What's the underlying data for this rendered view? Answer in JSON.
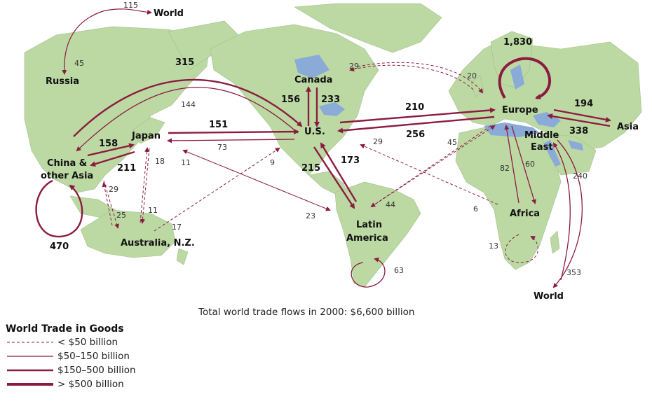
{
  "caption": "Total world trade flows in 2000: $6,600 billion",
  "colors": {
    "land": "#bcd9a4",
    "water": "#8aaad8",
    "flow": "#8b1c3f"
  },
  "legend": {
    "title": "World Trade in Goods",
    "items": [
      {
        "label": "< $50 billion",
        "style": "dashed-thin"
      },
      {
        "label": "$50–150 billion",
        "style": "thin"
      },
      {
        "label": "$150–500 billion",
        "style": "medium"
      },
      {
        "label": "> $500 billion",
        "style": "thick"
      }
    ]
  },
  "regions": {
    "world_top": "World",
    "russia": "Russia",
    "canada": "Canada",
    "us": "U.S.",
    "japan": "Japan",
    "china_1": "China &",
    "china_2": "other Asia",
    "australia": "Australia, N.Z.",
    "latin_1": "Latin",
    "latin_2": "America",
    "europe": "Europe",
    "asia": "Asia",
    "middle_1": "Middle",
    "middle_2": "East",
    "africa": "Africa",
    "world_bottom": "World"
  },
  "flows": {
    "russia_world_out": "115",
    "world_russia_in": "45",
    "china_us": "315",
    "us_china": "144",
    "canada_europe": "29",
    "europe_canada": "20",
    "europe_internal": "1,830",
    "canada_us": "156",
    "us_canada": "233",
    "us_europe": "210",
    "europe_us": "256",
    "europe_asia": "194",
    "asia_europe": "338",
    "japan_us": "151",
    "us_japan": "73",
    "china_japan": "158",
    "japan_china": "211",
    "japan_australia": "18",
    "latin_japan": "11",
    "australia_us": "9",
    "latin_us": "29",
    "europe_latin": "45",
    "china_australia": "29",
    "australia_china": "25",
    "australia_japan": "11",
    "us_australia": "17",
    "japan_latin": "23",
    "us_latin": "215",
    "latin_us_big": "173",
    "latin_europe": "44",
    "africa_europe": "82",
    "europe_africa": "60",
    "middle_world": "240",
    "africa_us": "6",
    "middle_world_2": "353",
    "latin_internal": "63",
    "africa_internal": "13",
    "china_internal": "470"
  }
}
